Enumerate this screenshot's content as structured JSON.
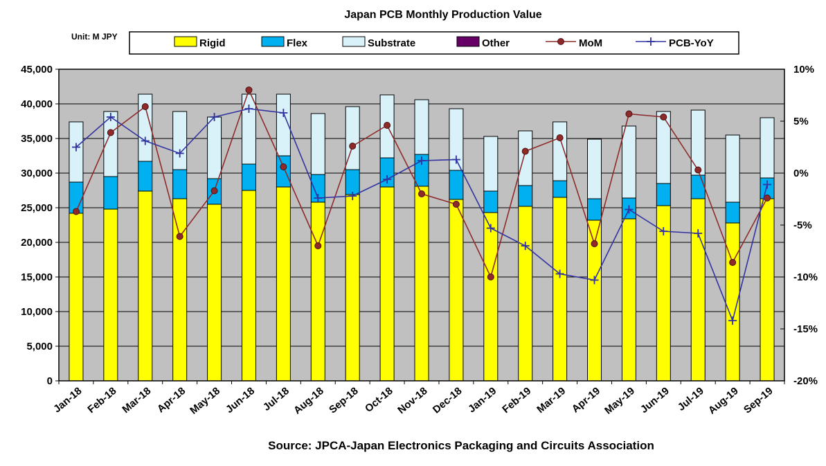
{
  "chart_data": {
    "type": "combo-stacked-bar-line",
    "title": "Japan PCB Monthly Production Value",
    "unit_label": "Unit: M JPY",
    "source": "Source: JPCA-Japan Electronics Packaging and Circuits Association",
    "plot_background": "#C0C0C0",
    "gridlines": "horizontal",
    "legend_position": "top",
    "categories": [
      "Jan-18",
      "Feb-18",
      "Mar-18",
      "Apr-18",
      "May-18",
      "Jun-18",
      "Jul-18",
      "Aug-18",
      "Sep-18",
      "Oct-18",
      "Nov-18",
      "Dec-18",
      "Jan-19",
      "Feb-19",
      "Mar-19",
      "Apr-19",
      "May-19",
      "Jun-19",
      "Jul-19",
      "Aug-19",
      "Sep-19"
    ],
    "left_axis": {
      "min": 0,
      "max": 45000,
      "step": 5000,
      "tick_labels": [
        "0",
        "5,000",
        "10,000",
        "15,000",
        "20,000",
        "25,000",
        "30,000",
        "35,000",
        "40,000",
        "45,000"
      ]
    },
    "right_axis": {
      "min": -20,
      "max": 10,
      "step": 5,
      "tick_labels": [
        "-20%",
        "-15%",
        "-10%",
        "-5%",
        "0%",
        "5%",
        "10%"
      ]
    },
    "bar_series": [
      {
        "name": "Rigid",
        "color": "#FFFF00",
        "values": [
          24200,
          24800,
          27400,
          26300,
          25500,
          27500,
          28000,
          25800,
          26900,
          28000,
          28100,
          26200,
          24300,
          25200,
          26500,
          23200,
          23400,
          25300,
          26300,
          22800,
          26300
        ]
      },
      {
        "name": "Flex",
        "color": "#00B0F0",
        "values": [
          4500,
          4700,
          4300,
          4200,
          3700,
          3800,
          4500,
          4000,
          3600,
          4200,
          4600,
          4200,
          3100,
          3000,
          2400,
          3100,
          3000,
          3200,
          3400,
          3000,
          3000
        ]
      },
      {
        "name": "Substrate",
        "color": "#D9F2FA",
        "values": [
          8700,
          9400,
          9700,
          8400,
          8900,
          10100,
          8900,
          8800,
          9100,
          9100,
          7900,
          8900,
          7900,
          7900,
          8500,
          8600,
          10400,
          10400,
          9400,
          9700,
          8700
        ]
      },
      {
        "name": "Other",
        "color": "#660066",
        "values": [
          0,
          0,
          0,
          0,
          0,
          0,
          0,
          0,
          0,
          0,
          0,
          0,
          0,
          0,
          0,
          0,
          0,
          0,
          0,
          0,
          0
        ]
      }
    ],
    "line_series": [
      {
        "name": "MoM",
        "color": "#8E2A2A",
        "marker": "circle",
        "axis": "right",
        "values": [
          -3.7,
          3.9,
          6.4,
          -6.1,
          -1.7,
          8.0,
          0.6,
          -7.0,
          2.6,
          4.6,
          -2.0,
          -3.0,
          -10.0,
          2.1,
          3.4,
          -6.8,
          5.7,
          5.4,
          0.3,
          -8.6,
          -2.4
        ]
      },
      {
        "name": "PCB-YoY",
        "color": "#3232A0",
        "marker": "plus",
        "axis": "right",
        "values": [
          2.5,
          5.4,
          3.1,
          1.9,
          5.4,
          6.2,
          5.8,
          -2.4,
          -2.2,
          -0.6,
          1.2,
          1.3,
          -5.3,
          -7.0,
          -9.7,
          -10.3,
          -3.5,
          -5.6,
          -5.8,
          -14.2,
          -1.1
        ]
      }
    ]
  }
}
